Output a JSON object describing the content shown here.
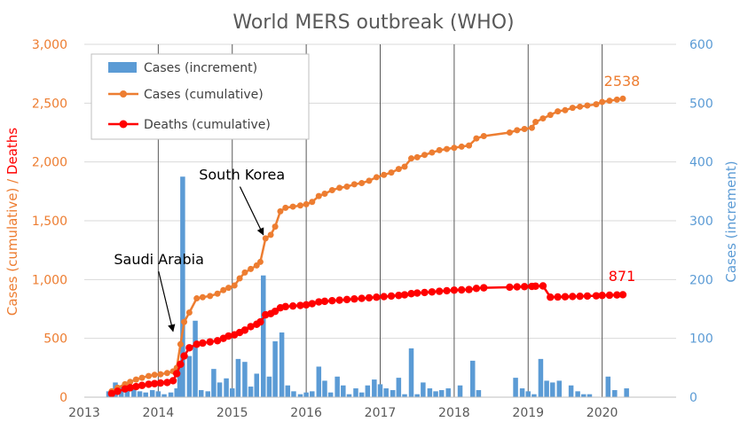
{
  "chart_data": {
    "type": "bar+line",
    "title": "World  MERS outbreak (WHO)",
    "x_axis": {
      "range": [
        2013,
        2021
      ],
      "ticks": [
        "2013",
        "2014",
        "2015",
        "2016",
        "2017",
        "2018",
        "2019",
        "2020"
      ]
    },
    "y_left": {
      "label_part1": "Cases (cumulative)",
      "label_sep": " / ",
      "label_part2": "Deaths",
      "range": [
        0,
        3000
      ],
      "ticks": [
        "0",
        "500",
        "1,000",
        "1,500",
        "2,000",
        "2,500",
        "3,000"
      ]
    },
    "y_right": {
      "label": "Cases (increment)",
      "range": [
        0,
        600
      ],
      "ticks": [
        "0",
        "100",
        "200",
        "300",
        "400",
        "500",
        "600"
      ]
    },
    "legend": [
      "Cases (increment)",
      "Cases (cumulative)",
      "Deaths (cumulative)"
    ],
    "legend_position": "top-left",
    "colors": {
      "increment": "#5b9bd5",
      "cumulative": "#ed7d31",
      "deaths": "#ff0000",
      "title": "#595959",
      "grid_v": "#595959",
      "grid_h": "#d9d9d9"
    },
    "annotations": [
      {
        "text": "Saudi Arabia",
        "x": 2013.7,
        "y": 1130,
        "arrow_to_x": 2014.2,
        "arrow_to_y": 560
      },
      {
        "text": "South Korea",
        "x": 2014.85,
        "y": 1850,
        "arrow_to_x": 2015.42,
        "arrow_to_y": 1380
      }
    ],
    "end_labels": {
      "cases": "2538",
      "deaths": "871"
    },
    "series": [
      {
        "name": "Cases (increment)",
        "kind": "bar",
        "axis": "right",
        "points": [
          [
            2013.33,
            10
          ],
          [
            2013.42,
            25
          ],
          [
            2013.5,
            20
          ],
          [
            2013.58,
            12
          ],
          [
            2013.67,
            15
          ],
          [
            2013.75,
            10
          ],
          [
            2013.83,
            8
          ],
          [
            2013.92,
            12
          ],
          [
            2014.0,
            10
          ],
          [
            2014.08,
            5
          ],
          [
            2014.17,
            8
          ],
          [
            2014.25,
            15
          ],
          [
            2014.29,
            60
          ],
          [
            2014.33,
            375
          ],
          [
            2014.42,
            70
          ],
          [
            2014.5,
            130
          ],
          [
            2014.58,
            12
          ],
          [
            2014.67,
            10
          ],
          [
            2014.75,
            48
          ],
          [
            2014.83,
            25
          ],
          [
            2014.92,
            32
          ],
          [
            2015.0,
            15
          ],
          [
            2015.08,
            65
          ],
          [
            2015.17,
            60
          ],
          [
            2015.25,
            18
          ],
          [
            2015.33,
            40
          ],
          [
            2015.42,
            207
          ],
          [
            2015.5,
            35
          ],
          [
            2015.58,
            95
          ],
          [
            2015.67,
            110
          ],
          [
            2015.75,
            20
          ],
          [
            2015.83,
            10
          ],
          [
            2015.92,
            5
          ],
          [
            2016.0,
            8
          ],
          [
            2016.08,
            10
          ],
          [
            2016.17,
            52
          ],
          [
            2016.25,
            28
          ],
          [
            2016.33,
            8
          ],
          [
            2016.42,
            35
          ],
          [
            2016.5,
            20
          ],
          [
            2016.58,
            5
          ],
          [
            2016.67,
            15
          ],
          [
            2016.75,
            8
          ],
          [
            2016.83,
            20
          ],
          [
            2016.92,
            30
          ],
          [
            2017.0,
            22
          ],
          [
            2017.08,
            15
          ],
          [
            2017.17,
            12
          ],
          [
            2017.25,
            33
          ],
          [
            2017.33,
            5
          ],
          [
            2017.42,
            83
          ],
          [
            2017.5,
            5
          ],
          [
            2017.58,
            25
          ],
          [
            2017.67,
            15
          ],
          [
            2017.75,
            10
          ],
          [
            2017.83,
            12
          ],
          [
            2017.92,
            15
          ],
          [
            2018.08,
            20
          ],
          [
            2018.25,
            62
          ],
          [
            2018.33,
            12
          ],
          [
            2018.83,
            33
          ],
          [
            2018.92,
            15
          ],
          [
            2019.0,
            10
          ],
          [
            2019.08,
            5
          ],
          [
            2019.17,
            65
          ],
          [
            2019.25,
            28
          ],
          [
            2019.33,
            25
          ],
          [
            2019.42,
            28
          ],
          [
            2019.58,
            20
          ],
          [
            2019.67,
            10
          ],
          [
            2019.75,
            5
          ],
          [
            2019.83,
            5
          ],
          [
            2020.08,
            35
          ],
          [
            2020.17,
            12
          ],
          [
            2020.33,
            15
          ]
        ]
      },
      {
        "name": "Cases (cumulative)",
        "kind": "line",
        "axis": "left",
        "points": [
          [
            2013.37,
            50
          ],
          [
            2013.45,
            80
          ],
          [
            2013.55,
            110
          ],
          [
            2013.62,
            130
          ],
          [
            2013.7,
            150
          ],
          [
            2013.78,
            165
          ],
          [
            2013.87,
            180
          ],
          [
            2013.95,
            190
          ],
          [
            2014.03,
            195
          ],
          [
            2014.12,
            205
          ],
          [
            2014.2,
            220
          ],
          [
            2014.25,
            250
          ],
          [
            2014.3,
            450
          ],
          [
            2014.35,
            640
          ],
          [
            2014.42,
            720
          ],
          [
            2014.52,
            840
          ],
          [
            2014.6,
            850
          ],
          [
            2014.7,
            860
          ],
          [
            2014.8,
            880
          ],
          [
            2014.88,
            910
          ],
          [
            2014.95,
            930
          ],
          [
            2015.03,
            950
          ],
          [
            2015.1,
            1010
          ],
          [
            2015.17,
            1060
          ],
          [
            2015.25,
            1090
          ],
          [
            2015.33,
            1120
          ],
          [
            2015.38,
            1150
          ],
          [
            2015.45,
            1350
          ],
          [
            2015.52,
            1380
          ],
          [
            2015.58,
            1450
          ],
          [
            2015.65,
            1580
          ],
          [
            2015.72,
            1610
          ],
          [
            2015.82,
            1620
          ],
          [
            2015.92,
            1630
          ],
          [
            2016.0,
            1640
          ],
          [
            2016.08,
            1660
          ],
          [
            2016.17,
            1710
          ],
          [
            2016.25,
            1730
          ],
          [
            2016.35,
            1760
          ],
          [
            2016.45,
            1780
          ],
          [
            2016.55,
            1790
          ],
          [
            2016.65,
            1810
          ],
          [
            2016.75,
            1820
          ],
          [
            2016.85,
            1840
          ],
          [
            2016.95,
            1870
          ],
          [
            2017.05,
            1890
          ],
          [
            2017.15,
            1910
          ],
          [
            2017.25,
            1940
          ],
          [
            2017.33,
            1960
          ],
          [
            2017.42,
            2030
          ],
          [
            2017.5,
            2040
          ],
          [
            2017.6,
            2060
          ],
          [
            2017.7,
            2080
          ],
          [
            2017.8,
            2100
          ],
          [
            2017.9,
            2110
          ],
          [
            2018.0,
            2120
          ],
          [
            2018.1,
            2130
          ],
          [
            2018.2,
            2140
          ],
          [
            2018.3,
            2200
          ],
          [
            2018.4,
            2220
          ],
          [
            2018.75,
            2250
          ],
          [
            2018.85,
            2270
          ],
          [
            2018.95,
            2280
          ],
          [
            2019.05,
            2290
          ],
          [
            2019.1,
            2340
          ],
          [
            2019.2,
            2370
          ],
          [
            2019.3,
            2400
          ],
          [
            2019.4,
            2430
          ],
          [
            2019.5,
            2440
          ],
          [
            2019.6,
            2460
          ],
          [
            2019.7,
            2470
          ],
          [
            2019.8,
            2480
          ],
          [
            2019.92,
            2490
          ],
          [
            2020.0,
            2510
          ],
          [
            2020.1,
            2520
          ],
          [
            2020.2,
            2530
          ],
          [
            2020.28,
            2538
          ]
        ]
      },
      {
        "name": "Deaths (cumulative)",
        "kind": "line",
        "axis": "left",
        "points": [
          [
            2013.37,
            30
          ],
          [
            2013.45,
            50
          ],
          [
            2013.55,
            70
          ],
          [
            2013.62,
            80
          ],
          [
            2013.7,
            90
          ],
          [
            2013.78,
            100
          ],
          [
            2013.87,
            110
          ],
          [
            2013.95,
            115
          ],
          [
            2014.03,
            120
          ],
          [
            2014.12,
            125
          ],
          [
            2014.2,
            140
          ],
          [
            2014.25,
            200
          ],
          [
            2014.3,
            280
          ],
          [
            2014.35,
            350
          ],
          [
            2014.42,
            420
          ],
          [
            2014.52,
            450
          ],
          [
            2014.6,
            460
          ],
          [
            2014.7,
            470
          ],
          [
            2014.8,
            480
          ],
          [
            2014.88,
            500
          ],
          [
            2014.95,
            520
          ],
          [
            2015.03,
            530
          ],
          [
            2015.1,
            550
          ],
          [
            2015.17,
            570
          ],
          [
            2015.25,
            600
          ],
          [
            2015.33,
            620
          ],
          [
            2015.38,
            640
          ],
          [
            2015.45,
            700
          ],
          [
            2015.52,
            710
          ],
          [
            2015.58,
            730
          ],
          [
            2015.65,
            760
          ],
          [
            2015.72,
            770
          ],
          [
            2015.82,
            775
          ],
          [
            2015.92,
            780
          ],
          [
            2016.0,
            785
          ],
          [
            2016.08,
            795
          ],
          [
            2016.17,
            810
          ],
          [
            2016.25,
            815
          ],
          [
            2016.35,
            820
          ],
          [
            2016.45,
            825
          ],
          [
            2016.55,
            830
          ],
          [
            2016.65,
            835
          ],
          [
            2016.75,
            840
          ],
          [
            2016.85,
            845
          ],
          [
            2016.95,
            850
          ],
          [
            2017.05,
            855
          ],
          [
            2017.15,
            860
          ],
          [
            2017.25,
            865
          ],
          [
            2017.33,
            870
          ],
          [
            2017.42,
            880
          ],
          [
            2017.5,
            885
          ],
          [
            2017.6,
            890
          ],
          [
            2017.7,
            895
          ],
          [
            2017.8,
            900
          ],
          [
            2017.9,
            905
          ],
          [
            2018.0,
            910
          ],
          [
            2018.1,
            912
          ],
          [
            2018.2,
            915
          ],
          [
            2018.3,
            925
          ],
          [
            2018.4,
            930
          ],
          [
            2018.75,
            935
          ],
          [
            2018.85,
            938
          ],
          [
            2018.95,
            940
          ],
          [
            2019.05,
            942
          ],
          [
            2019.1,
            944
          ],
          [
            2019.2,
            946
          ],
          [
            2019.3,
            850
          ],
          [
            2019.4,
            852
          ],
          [
            2019.5,
            854
          ],
          [
            2019.6,
            856
          ],
          [
            2019.7,
            858
          ],
          [
            2019.8,
            860
          ],
          [
            2019.92,
            862
          ],
          [
            2020.0,
            865
          ],
          [
            2020.1,
            867
          ],
          [
            2020.2,
            869
          ],
          [
            2020.28,
            871
          ]
        ]
      }
    ]
  }
}
